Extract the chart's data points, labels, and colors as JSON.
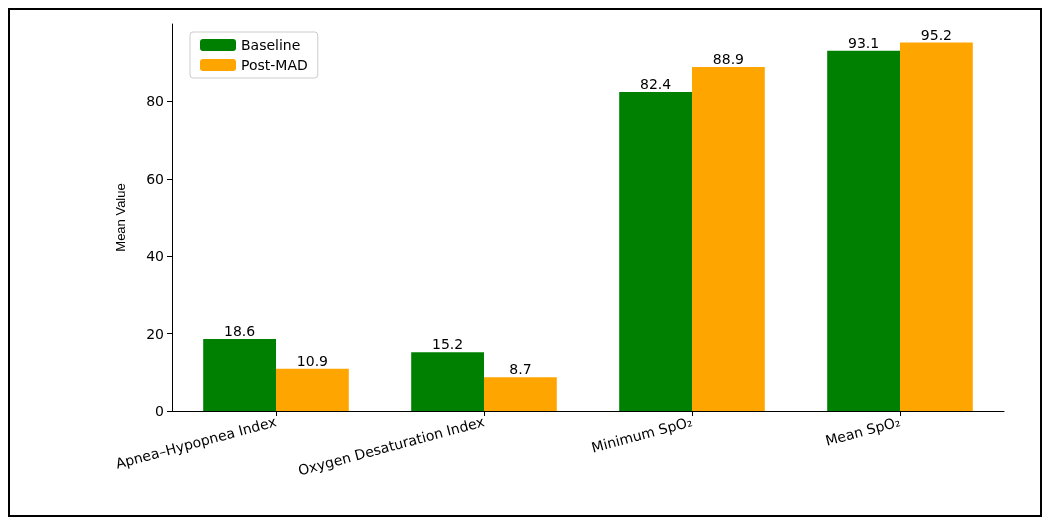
{
  "chart_data": {
    "type": "bar",
    "ylabel": "Mean Value",
    "categories": [
      "Apnea–Hypopnea Index",
      "Oxygen Desaturation Index",
      "Minimum SpO₂",
      "Mean SpO₂"
    ],
    "series": [
      {
        "name": "Baseline",
        "color": "#008000",
        "values": [
          18.6,
          15.2,
          82.4,
          93.1
        ]
      },
      {
        "name": "Post-MAD",
        "color": "#ffa500",
        "values": [
          10.9,
          8.7,
          88.9,
          95.2
        ]
      }
    ],
    "ylim": [
      0,
      100
    ],
    "yticks": [
      0,
      20,
      40,
      60,
      80
    ],
    "data_labels": true,
    "legend": "top left",
    "grid": false
  }
}
